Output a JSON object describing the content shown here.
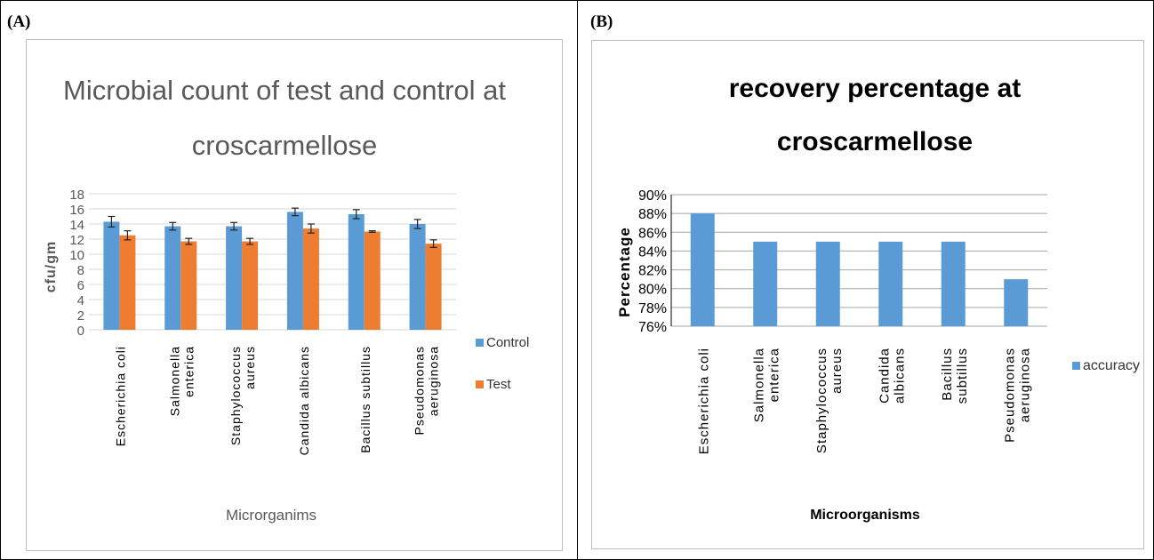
{
  "panels": {
    "a_label": "(A)",
    "b_label": "(B)"
  },
  "chart_data": [
    {
      "type": "bar",
      "title_lines": [
        "Microbial count of test and control at",
        "croscarmellose"
      ],
      "xlabel": "Microrganims",
      "ylabel": "cfu/gm",
      "ylim": [
        0,
        18
      ],
      "yticks": [
        "0",
        "2",
        "4",
        "6",
        "8",
        "10",
        "12",
        "14",
        "16",
        "18"
      ],
      "categories": [
        [
          "Escherichia coli"
        ],
        [
          "Salmonella",
          "enterica"
        ],
        [
          "Staphylococcus",
          "aureus"
        ],
        [
          "Candida albicans"
        ],
        [
          "Bacillus subtillus"
        ],
        [
          "Pseudomonas",
          "aeruginosa"
        ]
      ],
      "series": [
        {
          "name": "Control",
          "color": "#5b9bd5",
          "values": [
            14.3,
            13.7,
            13.7,
            15.6,
            15.3,
            14.0
          ],
          "errors": [
            0.7,
            0.5,
            0.5,
            0.5,
            0.6,
            0.6
          ]
        },
        {
          "name": "Test",
          "color": "#ed7d31",
          "values": [
            12.5,
            11.7,
            11.7,
            13.4,
            13.0,
            11.4
          ],
          "errors": [
            0.6,
            0.4,
            0.4,
            0.6,
            0.1,
            0.5
          ]
        }
      ],
      "grid": true,
      "legend": "right",
      "error_bars": true
    },
    {
      "type": "bar",
      "title_lines": [
        "recovery percentage at",
        "croscarmellose"
      ],
      "xlabel": "Microorganisms",
      "ylabel": "Percentage",
      "ylim": [
        76,
        90
      ],
      "yticks": [
        "76%",
        "78%",
        "80%",
        "82%",
        "84%",
        "86%",
        "88%",
        "90%"
      ],
      "categories": [
        [
          "Escherichia coli"
        ],
        [
          "Salmonella",
          "enterica"
        ],
        [
          "Staphylococcus",
          "aureus"
        ],
        [
          "Candida",
          "albicans"
        ],
        [
          "Bacillus",
          "subtillus"
        ],
        [
          "Pseudomonas",
          "aeruginosa"
        ]
      ],
      "series": [
        {
          "name": "accuracy",
          "color": "#5b9bd5",
          "values": [
            88,
            85,
            85,
            85,
            85,
            81
          ]
        }
      ],
      "grid": true,
      "legend": "right"
    }
  ]
}
